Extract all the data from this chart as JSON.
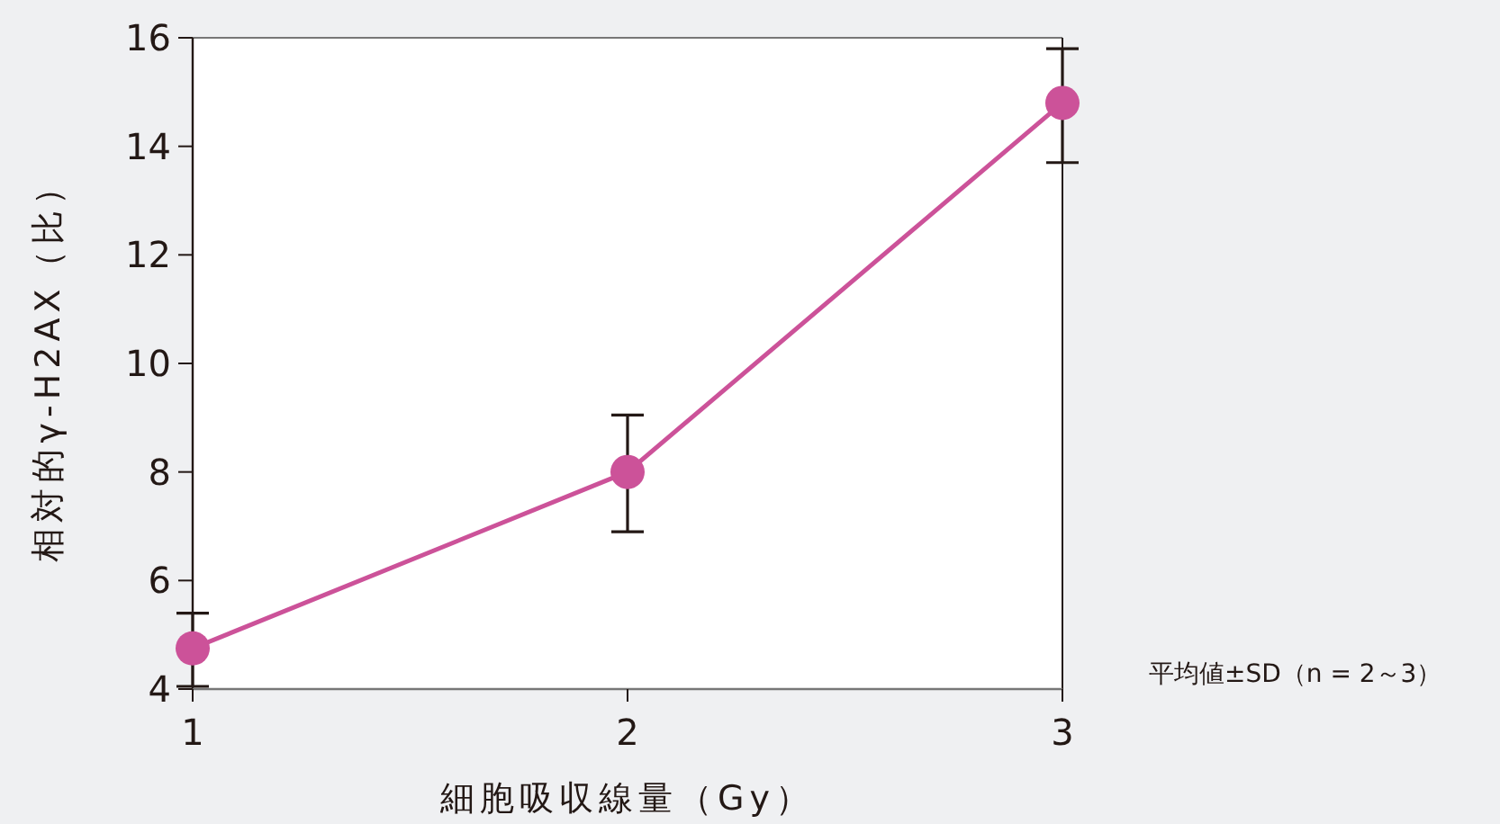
{
  "chart_data": {
    "type": "line",
    "xlabel": "細胞吸収線量（Gy）",
    "ylabel": "相対的γ-H2AX（比）",
    "x": [
      1,
      2,
      3
    ],
    "values": [
      4.75,
      8.0,
      14.8
    ],
    "errors": [
      [
        4.05,
        5.4
      ],
      [
        6.9,
        9.05
      ],
      [
        13.7,
        15.8
      ]
    ],
    "color": "#cc5299",
    "marker": "circle",
    "xlim": [
      1,
      3
    ],
    "ylim": [
      4,
      16
    ],
    "xticks": [
      1,
      2,
      3
    ],
    "yticks": [
      4,
      6,
      8,
      10,
      12,
      14,
      16
    ],
    "annotations": [
      "平均値±SD（n = 2～3）"
    ]
  }
}
